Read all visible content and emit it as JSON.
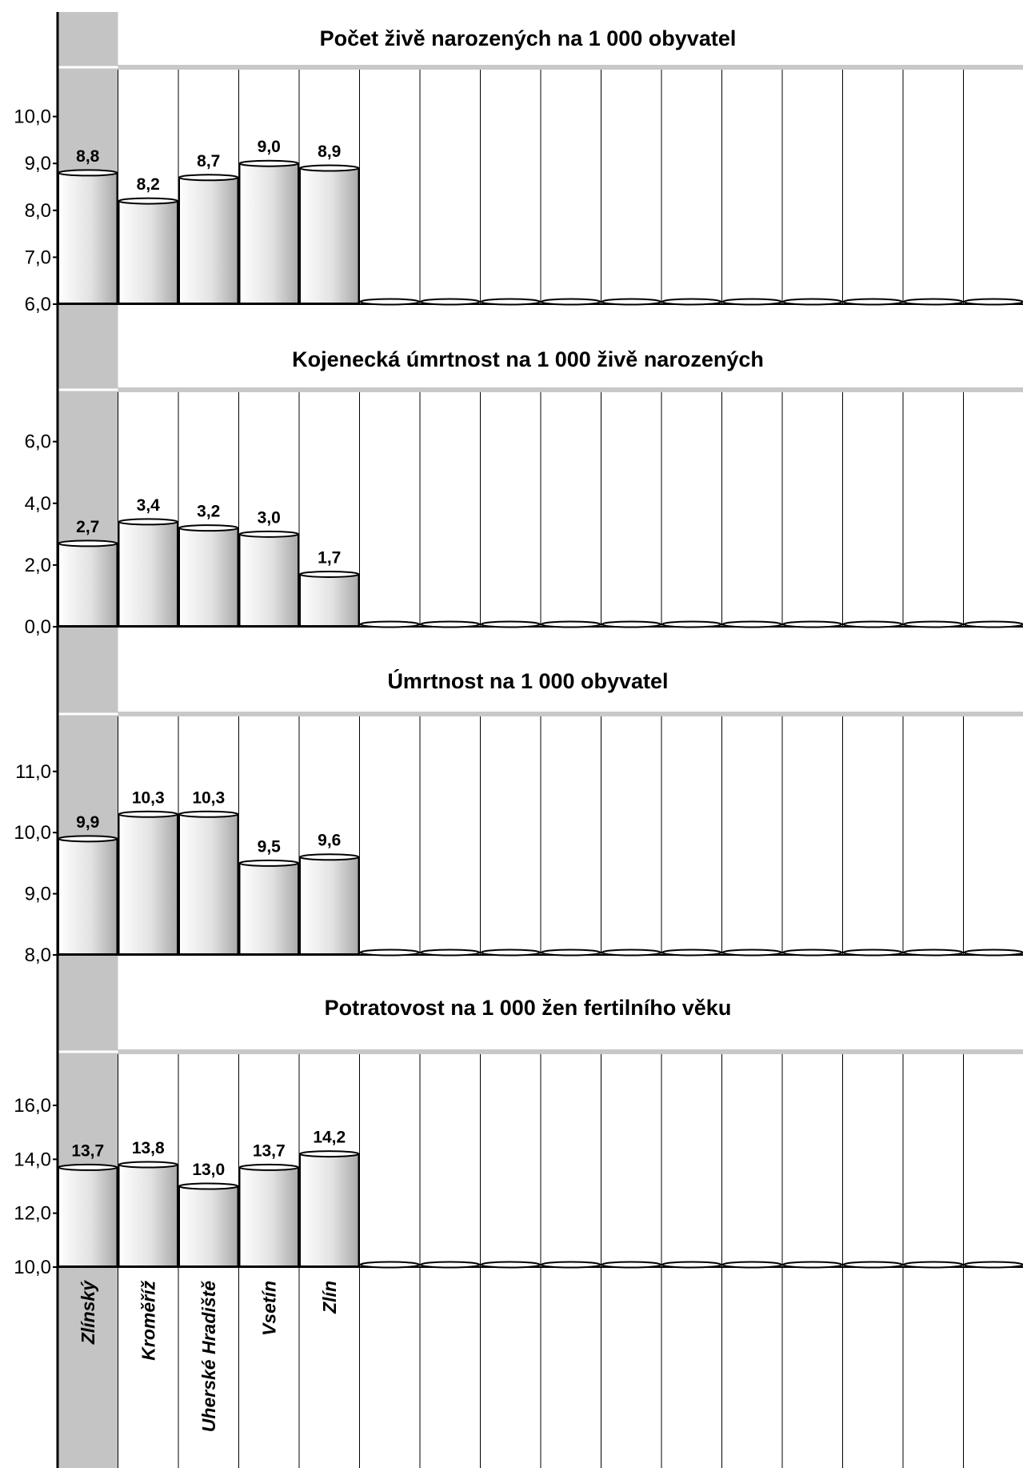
{
  "colors": {
    "gray_band": "#c4c4c4",
    "bar_fill_light": "#ffffff",
    "bar_fill_dark": "#a9a9a9",
    "grid": "#000000",
    "divider": "#c8c8c8"
  },
  "chart_data": {
    "type": "bar",
    "categories": [
      "Zlínský",
      "Kroměříž",
      "Uherské Hradiště",
      "Vsetín",
      "Zlín",
      "",
      "",
      "",
      "",
      "",
      "",
      "",
      "",
      "",
      "",
      ""
    ],
    "panels": [
      {
        "title": "Počet živě narozených na 1 000 obyvatel",
        "values": [
          8.8,
          8.2,
          8.7,
          9.0,
          8.9
        ],
        "value_labels": [
          "8,8",
          "8,2",
          "8,7",
          "9,0",
          "8,9"
        ],
        "yticks": [
          "6,0",
          "7,0",
          "8,0",
          "9,0",
          "10,0"
        ],
        "ytick_values": [
          6,
          7,
          8,
          9,
          10
        ],
        "ylim": [
          6,
          11
        ]
      },
      {
        "title": "Kojenecká úmrtnost na 1 000 živě narozených",
        "values": [
          2.7,
          3.4,
          3.2,
          3.0,
          1.7
        ],
        "value_labels": [
          "2,7",
          "3,4",
          "3,2",
          "3,0",
          "1,7"
        ],
        "yticks": [
          "0,0",
          "2,0",
          "4,0",
          "6,0"
        ],
        "ytick_values": [
          0,
          2,
          4,
          6
        ],
        "ylim": [
          0,
          7.6
        ]
      },
      {
        "title": "Úmrtnost na 1 000 obyvatel",
        "values": [
          9.9,
          10.3,
          10.3,
          9.5,
          9.6
        ],
        "value_labels": [
          "9,9",
          "10,3",
          "10,3",
          "9,5",
          "9,6"
        ],
        "yticks": [
          "8,0",
          "9,0",
          "10,0",
          "11,0"
        ],
        "ytick_values": [
          8,
          9,
          10,
          11
        ],
        "ylim": [
          8,
          11.9
        ]
      },
      {
        "title": "Potratovost na 1 000 žen fertilního věku",
        "values": [
          13.7,
          13.8,
          13.0,
          13.7,
          14.2
        ],
        "value_labels": [
          "13,7",
          "13,8",
          "13,0",
          "13,7",
          "14,2"
        ],
        "yticks": [
          "10,0",
          "12,0",
          "14,0",
          "16,0"
        ],
        "ytick_values": [
          10,
          12,
          14,
          16
        ],
        "ylim": [
          10,
          17.9
        ]
      }
    ]
  }
}
